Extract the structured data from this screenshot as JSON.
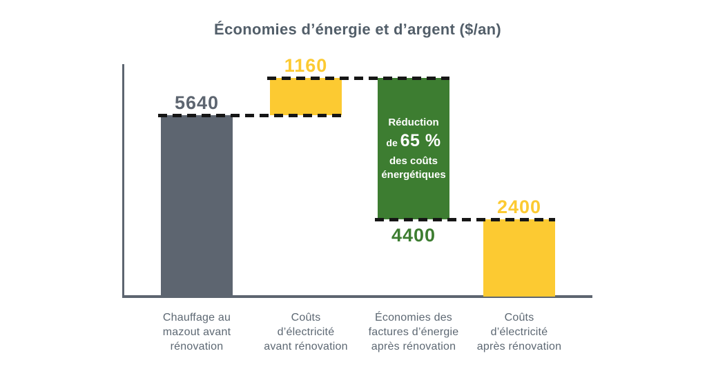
{
  "page": {
    "background": "#ffffff"
  },
  "chart_data": {
    "type": "bar",
    "subtype": "waterfall",
    "title": "Économies d’énergie et d’argent ($/an)",
    "value_axis": {
      "min": 0,
      "max": 6800,
      "unit": "$/an",
      "gridlines": false,
      "tick_labels": false
    },
    "legend": "none",
    "colors": {
      "slate": "#5d6570",
      "yellow": "#fcca32",
      "green": "#3d7d31",
      "connector": "#161616",
      "axis": "#5d6570",
      "title_text": "#525e69",
      "category_text": "#5d6873"
    },
    "bars": [
      {
        "category_lines": [
          "Chauffage au",
          "mazout avant",
          "rénovation"
        ],
        "value": 5640,
        "from": 0,
        "to": 5640,
        "color_key": "slate",
        "value_label": "5640",
        "value_label_color": "#5d6570",
        "value_label_position": "above"
      },
      {
        "category_lines": [
          "Coûts",
          "d’électricité",
          "avant rénovation"
        ],
        "value": 1160,
        "from": 5640,
        "to": 6800,
        "color_key": "yellow",
        "value_label": "1160",
        "value_label_color": "#fcca32",
        "value_label_position": "above"
      },
      {
        "category_lines": [
          "Économies des",
          "factures d’énergie",
          "après rénovation"
        ],
        "value": 4400,
        "direction": "decrease",
        "from": 6800,
        "to": 2400,
        "color_key": "green",
        "value_label": "4400",
        "value_label_color": "#3d7d31",
        "value_label_position": "below",
        "annotation": {
          "line1": "Réduction",
          "line2_prefix": "de",
          "line2_value": "65 %",
          "line3": "des coûts",
          "line4": "énergétiques",
          "text_color": "#ffffff"
        }
      },
      {
        "category_lines": [
          "Coûts",
          "d’électricité",
          "après rénovation"
        ],
        "value": 2400,
        "from": 2400,
        "to": 0,
        "color_key": "yellow",
        "value_label": "2400",
        "value_label_color": "#fcca32",
        "value_label_position": "above"
      }
    ],
    "connectors": [
      {
        "level": 5640,
        "from_bar": 0,
        "to_bar": 1
      },
      {
        "level": 6800,
        "from_bar": 1,
        "to_bar": 2
      },
      {
        "level": 2400,
        "from_bar": 2,
        "to_bar": 3
      }
    ]
  }
}
